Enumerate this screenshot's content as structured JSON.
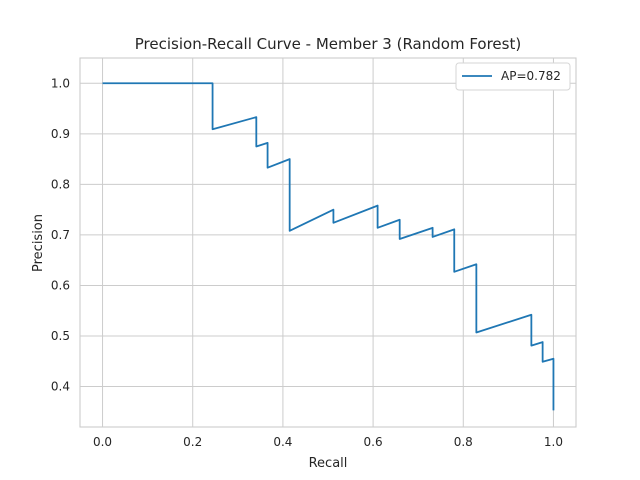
{
  "chart_data": {
    "type": "line",
    "title": "Precision-Recall Curve - Member 3 (Random Forest)",
    "xlabel": "Recall",
    "ylabel": "Precision",
    "xlim": [
      -0.05,
      1.05
    ],
    "ylim": [
      0.32,
      1.05
    ],
    "xticks": [
      0.0,
      0.2,
      0.4,
      0.6,
      0.8,
      1.0
    ],
    "xtick_labels": [
      "0.0",
      "0.2",
      "0.4",
      "0.6",
      "0.8",
      "1.0"
    ],
    "yticks": [
      0.4,
      0.5,
      0.6,
      0.7,
      0.8,
      0.9,
      1.0
    ],
    "ytick_labels": [
      "0.4",
      "0.5",
      "0.6",
      "0.7",
      "0.8",
      "0.9",
      "1.0"
    ],
    "grid": true,
    "legend": "top-right",
    "series": [
      {
        "name": "AP=0.782",
        "color": "#1f77b4",
        "x": [
          0.0,
          0.244,
          0.244,
          0.341,
          0.341,
          0.366,
          0.366,
          0.415,
          0.415,
          0.512,
          0.512,
          0.61,
          0.61,
          0.659,
          0.659,
          0.732,
          0.732,
          0.78,
          0.78,
          0.829,
          0.829,
          0.951,
          0.951,
          0.976,
          0.976,
          1.0,
          1.0
        ],
        "y": [
          1.0,
          1.0,
          0.909,
          0.933,
          0.875,
          0.882,
          0.833,
          0.85,
          0.708,
          0.75,
          0.724,
          0.758,
          0.714,
          0.73,
          0.692,
          0.714,
          0.696,
          0.711,
          0.627,
          0.642,
          0.507,
          0.542,
          0.481,
          0.488,
          0.449,
          0.455,
          0.353
        ]
      }
    ]
  }
}
